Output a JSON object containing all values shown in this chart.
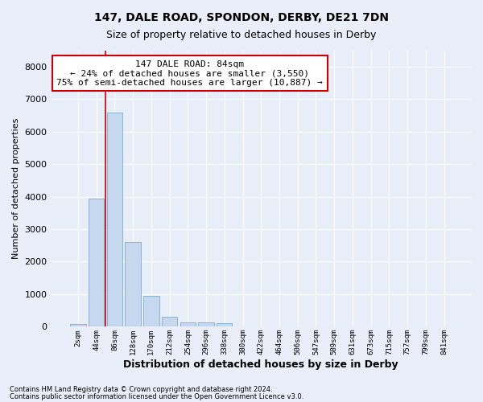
{
  "title_line1": "147, DALE ROAD, SPONDON, DERBY, DE21 7DN",
  "title_line2": "Size of property relative to detached houses in Derby",
  "xlabel": "Distribution of detached houses by size in Derby",
  "ylabel": "Number of detached properties",
  "bar_color": "#c5d8f0",
  "bar_edge_color": "#7aacd4",
  "background_color": "#e8eef8",
  "grid_color": "#ffffff",
  "categories": [
    "2sqm",
    "44sqm",
    "86sqm",
    "128sqm",
    "170sqm",
    "212sqm",
    "254sqm",
    "296sqm",
    "338sqm",
    "380sqm",
    "422sqm",
    "464sqm",
    "506sqm",
    "547sqm",
    "589sqm",
    "631sqm",
    "673sqm",
    "715sqm",
    "757sqm",
    "799sqm",
    "841sqm"
  ],
  "bar_heights": [
    80,
    3950,
    6580,
    2600,
    950,
    310,
    130,
    130,
    100,
    0,
    0,
    0,
    0,
    0,
    0,
    0,
    0,
    0,
    0,
    0,
    0
  ],
  "ylim": [
    0,
    8500
  ],
  "yticks": [
    0,
    1000,
    2000,
    3000,
    4000,
    5000,
    6000,
    7000,
    8000
  ],
  "annotation_text": "147 DALE ROAD: 84sqm\n← 24% of detached houses are smaller (3,550)\n75% of semi-detached houses are larger (10,887) →",
  "annotation_box_color": "#ffffff",
  "annotation_box_edge_color": "#cc0000",
  "red_line_color": "#cc0000",
  "footnote1": "Contains HM Land Registry data © Crown copyright and database right 2024.",
  "footnote2": "Contains public sector information licensed under the Open Government Licence v3.0."
}
